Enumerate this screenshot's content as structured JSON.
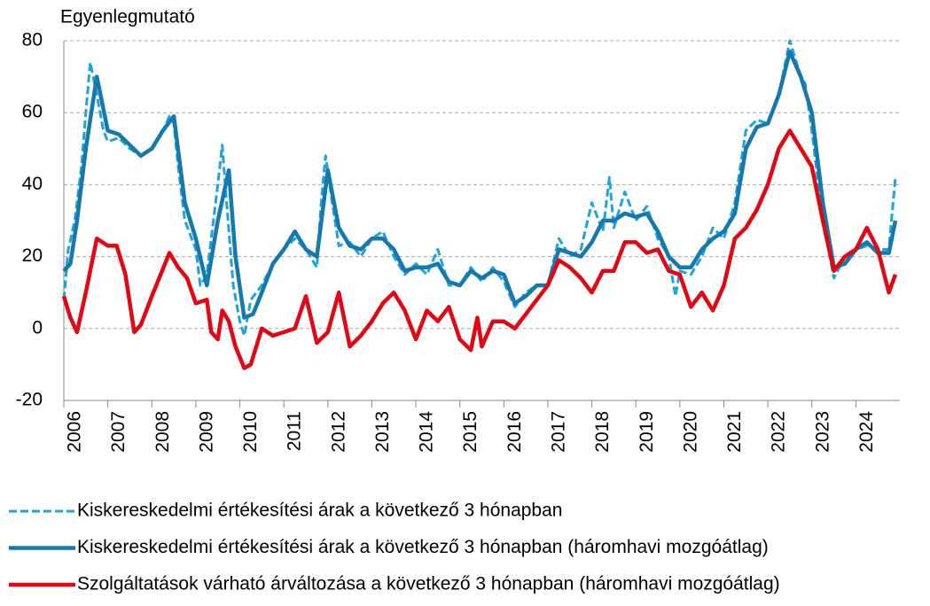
{
  "chart_data": {
    "type": "line",
    "title": "Egyenlegmutató",
    "xlim": [
      2006,
      2025
    ],
    "xticks": [
      2006,
      2007,
      2008,
      2009,
      2010,
      2011,
      2012,
      2013,
      2014,
      2015,
      2016,
      2017,
      2018,
      2019,
      2020,
      2021,
      2022,
      2023,
      2024
    ],
    "ylim": [
      -20,
      80
    ],
    "yticks": [
      -20,
      0,
      20,
      40,
      60,
      80
    ],
    "grid": true,
    "legend": "bottom",
    "series": [
      {
        "name": "Kiskereskedelmi értékesítési árak a következő 3 hónapban",
        "color": "#1fa3dc",
        "dashed": true,
        "x": [
          2006.0,
          2006.1,
          2006.25,
          2006.4,
          2006.5,
          2006.6,
          2006.75,
          2006.9,
          2007.0,
          2007.25,
          2007.5,
          2007.75,
          2008.0,
          2008.25,
          2008.4,
          2008.5,
          2008.6,
          2008.75,
          2009.0,
          2009.1,
          2009.25,
          2009.4,
          2009.5,
          2009.6,
          2009.7,
          2009.85,
          2010.0,
          2010.1,
          2010.25,
          2010.5,
          2010.75,
          2011.0,
          2011.25,
          2011.5,
          2011.75,
          2011.85,
          2011.95,
          2012.1,
          2012.25,
          2012.5,
          2012.75,
          2013.0,
          2013.25,
          2013.5,
          2013.75,
          2014.0,
          2014.25,
          2014.5,
          2014.75,
          2015.0,
          2015.25,
          2015.5,
          2015.75,
          2016.0,
          2016.25,
          2016.5,
          2016.75,
          2017.0,
          2017.25,
          2017.5,
          2017.75,
          2018.0,
          2018.25,
          2018.4,
          2018.5,
          2018.75,
          2019.0,
          2019.25,
          2019.5,
          2019.75,
          2019.9,
          2020.0,
          2020.25,
          2020.5,
          2020.75,
          2021.0,
          2021.25,
          2021.5,
          2021.75,
          2022.0,
          2022.25,
          2022.5,
          2022.75,
          2022.85,
          2023.0,
          2023.25,
          2023.5,
          2023.75,
          2024.0,
          2024.25,
          2024.5,
          2024.75,
          2024.9
        ],
        "values": [
          8,
          22,
          30,
          45,
          60,
          74,
          65,
          55,
          52,
          53,
          50,
          48,
          50,
          55,
          59,
          57,
          45,
          30,
          22,
          12,
          15,
          30,
          40,
          51,
          35,
          12,
          2,
          -2,
          8,
          12,
          18,
          22,
          25,
          22,
          17,
          35,
          48,
          35,
          23,
          24,
          20,
          25,
          27,
          20,
          15,
          18,
          15,
          22,
          12,
          12,
          17,
          13,
          17,
          13,
          6,
          10,
          12,
          12,
          25,
          20,
          22,
          35,
          27,
          42,
          28,
          38,
          30,
          34,
          25,
          20,
          9,
          16,
          15,
          20,
          28,
          25,
          35,
          55,
          58,
          57,
          65,
          80,
          70,
          68,
          55,
          30,
          14,
          20,
          22,
          23,
          22,
          22,
          42
        ]
      },
      {
        "name": "Kiskereskedelmi értékesítési árak a következő 3 hónapban (háromhavi mozgóátlag)",
        "color": "#1479ae",
        "dashed": false,
        "x": [
          2006.0,
          2006.15,
          2006.3,
          2006.5,
          2006.75,
          2007.0,
          2007.25,
          2007.5,
          2007.75,
          2008.0,
          2008.25,
          2008.5,
          2008.75,
          2009.0,
          2009.25,
          2009.5,
          2009.75,
          2009.9,
          2010.1,
          2010.3,
          2010.5,
          2010.75,
          2011.0,
          2011.25,
          2011.5,
          2011.75,
          2012.0,
          2012.25,
          2012.5,
          2012.75,
          2013.0,
          2013.25,
          2013.5,
          2013.75,
          2014.0,
          2014.25,
          2014.5,
          2014.75,
          2015.0,
          2015.25,
          2015.5,
          2015.75,
          2016.0,
          2016.25,
          2016.5,
          2016.75,
          2017.0,
          2017.25,
          2017.5,
          2017.75,
          2018.0,
          2018.25,
          2018.5,
          2018.75,
          2019.0,
          2019.25,
          2019.5,
          2019.75,
          2020.0,
          2020.25,
          2020.5,
          2020.75,
          2021.0,
          2021.25,
          2021.5,
          2021.75,
          2022.0,
          2022.25,
          2022.5,
          2022.75,
          2023.0,
          2023.25,
          2023.5,
          2023.75,
          2024.0,
          2024.25,
          2024.5,
          2024.75,
          2024.9
        ],
        "values": [
          16,
          18,
          30,
          50,
          70,
          55,
          54,
          51,
          48,
          50,
          55,
          59,
          35,
          25,
          12,
          30,
          44,
          20,
          3,
          4,
          10,
          18,
          22,
          27,
          22,
          20,
          44,
          28,
          23,
          22,
          25,
          25,
          22,
          16,
          17,
          17,
          18,
          13,
          12,
          16,
          14,
          16,
          15,
          7,
          9,
          12,
          12,
          22,
          21,
          20,
          24,
          30,
          30,
          32,
          31,
          32,
          27,
          20,
          17,
          17,
          22,
          25,
          27,
          32,
          50,
          56,
          57,
          65,
          77,
          70,
          60,
          35,
          17,
          18,
          22,
          24,
          21,
          21,
          30
        ]
      },
      {
        "name": "Szolgáltatások várható árváltozása a következő 3 hónapban (háromhavi mozgóátlag)",
        "color": "#e30613",
        "dashed": false,
        "x": [
          2006.0,
          2006.15,
          2006.3,
          2006.5,
          2006.75,
          2007.0,
          2007.2,
          2007.4,
          2007.6,
          2007.75,
          2008.0,
          2008.2,
          2008.4,
          2008.6,
          2008.8,
          2009.0,
          2009.25,
          2009.35,
          2009.5,
          2009.6,
          2009.75,
          2009.9,
          2010.1,
          2010.25,
          2010.5,
          2010.75,
          2011.0,
          2011.25,
          2011.5,
          2011.75,
          2012.0,
          2012.25,
          2012.5,
          2012.75,
          2013.0,
          2013.25,
          2013.5,
          2013.75,
          2014.0,
          2014.25,
          2014.5,
          2014.75,
          2015.0,
          2015.25,
          2015.4,
          2015.5,
          2015.75,
          2016.0,
          2016.25,
          2016.5,
          2016.75,
          2017.0,
          2017.25,
          2017.5,
          2017.75,
          2018.0,
          2018.25,
          2018.5,
          2018.75,
          2019.0,
          2019.25,
          2019.5,
          2019.75,
          2020.0,
          2020.25,
          2020.5,
          2020.75,
          2021.0,
          2021.25,
          2021.5,
          2021.75,
          2022.0,
          2022.25,
          2022.5,
          2022.75,
          2023.0,
          2023.25,
          2023.5,
          2023.75,
          2024.0,
          2024.25,
          2024.5,
          2024.75,
          2024.9
        ],
        "values": [
          9,
          3,
          -1,
          10,
          25,
          23,
          23,
          15,
          -1,
          1,
          9,
          15,
          21,
          17,
          14,
          7,
          8,
          -1,
          -3,
          5,
          2,
          -5,
          -11,
          -10,
          0,
          -2,
          -1,
          0,
          9,
          -4,
          -1,
          10,
          -5,
          -2,
          2,
          7,
          10,
          5,
          -3,
          5,
          2,
          6,
          -3,
          -6,
          3,
          -5,
          2,
          2,
          0,
          4,
          8,
          12,
          19,
          17,
          14,
          10,
          16,
          16,
          24,
          24,
          21,
          22,
          16,
          15,
          6,
          10,
          5,
          12,
          25,
          28,
          33,
          40,
          50,
          55,
          50,
          45,
          30,
          16,
          20,
          22,
          28,
          22,
          10,
          15
        ]
      }
    ]
  }
}
